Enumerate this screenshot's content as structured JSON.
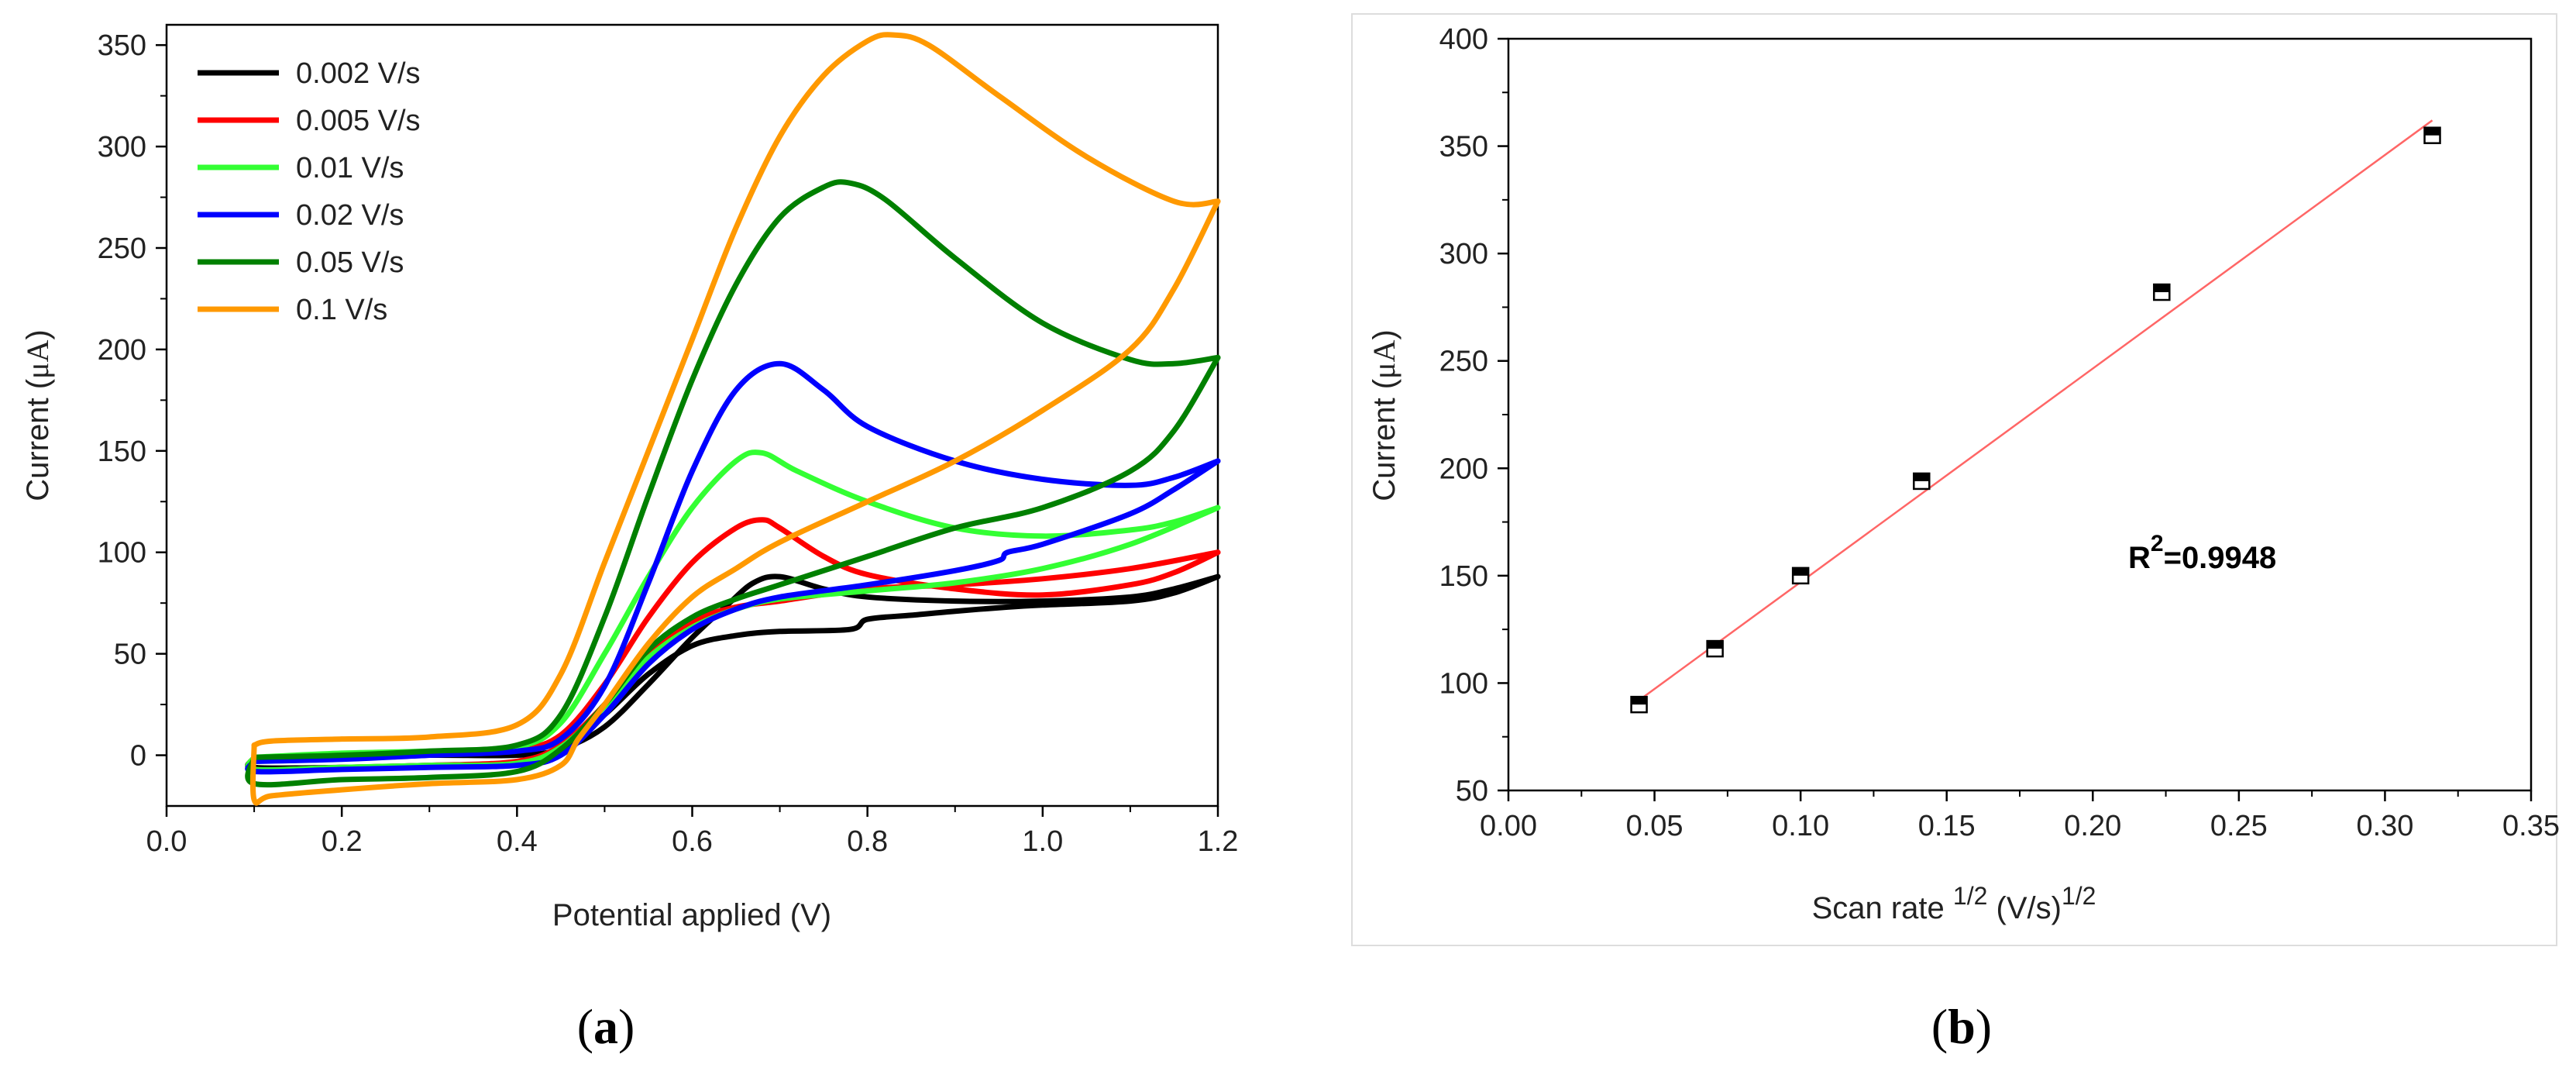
{
  "chart_data": [
    {
      "type": "line",
      "panel": "a",
      "panel_open": "(",
      "panel_letter": "a",
      "panel_close": ")",
      "xlabel": "Potential applied (V)",
      "ylabel_prefix": "Current (",
      "ylabel_unit": "μA",
      "ylabel_suffix": ")",
      "xlim": [
        0.0,
        1.2
      ],
      "ylim": [
        -25,
        360
      ],
      "xticks": [
        0.0,
        0.2,
        0.4,
        0.6,
        0.8,
        1.0,
        1.2
      ],
      "xtick_labels": [
        "0.0",
        "0.2",
        "0.4",
        "0.6",
        "0.8",
        "1.0",
        "1.2"
      ],
      "yticks": [
        0,
        50,
        100,
        150,
        200,
        250,
        300,
        350
      ],
      "ytick_labels": [
        "0",
        "50",
        "100",
        "150",
        "200",
        "250",
        "300",
        "350"
      ],
      "legend_position": "top-left",
      "series": [
        {
          "name": "0.002 V/s",
          "color": "#000000",
          "forward": [
            [
              0.1,
              -2
            ],
            [
              0.2,
              -1
            ],
            [
              0.3,
              0
            ],
            [
              0.4,
              0
            ],
            [
              0.45,
              3
            ],
            [
              0.5,
              14
            ],
            [
              0.55,
              35
            ],
            [
              0.6,
              58
            ],
            [
              0.64,
              74
            ],
            [
              0.67,
              85
            ],
            [
              0.7,
              88
            ],
            [
              0.75,
              82
            ],
            [
              0.8,
              78
            ],
            [
              0.9,
              76
            ],
            [
              1.0,
              76
            ],
            [
              1.1,
              78
            ],
            [
              1.15,
              82
            ],
            [
              1.2,
              88
            ]
          ],
          "reverse": [
            [
              1.2,
              88
            ],
            [
              1.15,
              80
            ],
            [
              1.1,
              76
            ],
            [
              1.0,
              74
            ],
            [
              0.96,
              73
            ],
            [
              0.9,
              71
            ],
            [
              0.85,
              69
            ],
            [
              0.8,
              67
            ],
            [
              0.78,
              62
            ],
            [
              0.7,
              61
            ],
            [
              0.65,
              59
            ],
            [
              0.6,
              54
            ],
            [
              0.55,
              40
            ],
            [
              0.5,
              20
            ],
            [
              0.45,
              3
            ],
            [
              0.4,
              -4
            ],
            [
              0.3,
              -5
            ],
            [
              0.2,
              -6
            ],
            [
              0.1,
              -6
            ],
            [
              0.1,
              -2
            ]
          ]
        },
        {
          "name": "0.005 V/s",
          "color": "#ff0000",
          "forward": [
            [
              0.1,
              -1
            ],
            [
              0.2,
              0
            ],
            [
              0.3,
              1
            ],
            [
              0.4,
              3
            ],
            [
              0.45,
              10
            ],
            [
              0.5,
              35
            ],
            [
              0.55,
              68
            ],
            [
              0.6,
              95
            ],
            [
              0.65,
              112
            ],
            [
              0.68,
              116
            ],
            [
              0.7,
              112
            ],
            [
              0.75,
              98
            ],
            [
              0.8,
              89
            ],
            [
              0.9,
              82
            ],
            [
              1.0,
              79
            ],
            [
              1.1,
              84
            ],
            [
              1.15,
              90
            ],
            [
              1.2,
              100
            ]
          ],
          "reverse": [
            [
              1.2,
              100
            ],
            [
              1.1,
              92
            ],
            [
              1.0,
              87
            ],
            [
              0.9,
              84
            ],
            [
              0.8,
              82
            ],
            [
              0.7,
              76
            ],
            [
              0.65,
              73
            ],
            [
              0.6,
              66
            ],
            [
              0.55,
              50
            ],
            [
              0.5,
              25
            ],
            [
              0.45,
              5
            ],
            [
              0.4,
              -3
            ],
            [
              0.3,
              -5
            ],
            [
              0.2,
              -6
            ],
            [
              0.1,
              -7
            ],
            [
              0.1,
              -1
            ]
          ]
        },
        {
          "name": "0.01 V/s",
          "color": "#33ff33",
          "forward": [
            [
              0.1,
              -1
            ],
            [
              0.2,
              1
            ],
            [
              0.3,
              2
            ],
            [
              0.4,
              4
            ],
            [
              0.45,
              16
            ],
            [
              0.5,
              50
            ],
            [
              0.55,
              88
            ],
            [
              0.6,
              122
            ],
            [
              0.65,
              145
            ],
            [
              0.68,
              149
            ],
            [
              0.72,
              140
            ],
            [
              0.8,
              125
            ],
            [
              0.9,
              112
            ],
            [
              1.0,
              108
            ],
            [
              1.1,
              111
            ],
            [
              1.15,
              115
            ],
            [
              1.2,
              122
            ]
          ],
          "reverse": [
            [
              1.2,
              122
            ],
            [
              1.1,
              104
            ],
            [
              1.0,
              92
            ],
            [
              0.9,
              85
            ],
            [
              0.8,
              81
            ],
            [
              0.7,
              77
            ],
            [
              0.65,
              72
            ],
            [
              0.6,
              63
            ],
            [
              0.55,
              48
            ],
            [
              0.5,
              24
            ],
            [
              0.45,
              4
            ],
            [
              0.4,
              -4
            ],
            [
              0.3,
              -5
            ],
            [
              0.2,
              -6
            ],
            [
              0.1,
              -7
            ],
            [
              0.1,
              -1
            ]
          ]
        },
        {
          "name": "0.02 V/s",
          "color": "#0000ff",
          "forward": [
            [
              0.1,
              -3
            ],
            [
              0.2,
              -2
            ],
            [
              0.3,
              0
            ],
            [
              0.4,
              2
            ],
            [
              0.45,
              8
            ],
            [
              0.5,
              34
            ],
            [
              0.55,
              85
            ],
            [
              0.6,
              140
            ],
            [
              0.65,
              180
            ],
            [
              0.7,
              193
            ],
            [
              0.75,
              180
            ],
            [
              0.8,
              162
            ],
            [
              0.9,
              145
            ],
            [
              1.0,
              136
            ],
            [
              1.1,
              133
            ],
            [
              1.15,
              137
            ],
            [
              1.2,
              145
            ]
          ],
          "reverse": [
            [
              1.2,
              145
            ],
            [
              1.15,
              131
            ],
            [
              1.1,
              119
            ],
            [
              1.0,
              104
            ],
            [
              0.96,
              100
            ],
            [
              0.95,
              96
            ],
            [
              0.9,
              91
            ],
            [
              0.8,
              84
            ],
            [
              0.7,
              78
            ],
            [
              0.65,
              72
            ],
            [
              0.6,
              62
            ],
            [
              0.55,
              45
            ],
            [
              0.5,
              20
            ],
            [
              0.45,
              0
            ],
            [
              0.4,
              -5
            ],
            [
              0.3,
              -6
            ],
            [
              0.2,
              -7
            ],
            [
              0.1,
              -8
            ],
            [
              0.1,
              -3
            ]
          ]
        },
        {
          "name": "0.05 V/s",
          "color": "#008000",
          "forward": [
            [
              0.1,
              -1
            ],
            [
              0.2,
              0
            ],
            [
              0.3,
              2
            ],
            [
              0.4,
              5
            ],
            [
              0.45,
              20
            ],
            [
              0.5,
              68
            ],
            [
              0.55,
              128
            ],
            [
              0.6,
              185
            ],
            [
              0.65,
              232
            ],
            [
              0.7,
              265
            ],
            [
              0.75,
              280
            ],
            [
              0.78,
              282
            ],
            [
              0.82,
              274
            ],
            [
              0.9,
              245
            ],
            [
              1.0,
              213
            ],
            [
              1.1,
              195
            ],
            [
              1.15,
              193
            ],
            [
              1.2,
              196
            ]
          ],
          "reverse": [
            [
              1.2,
              196
            ],
            [
              1.15,
              160
            ],
            [
              1.1,
              140
            ],
            [
              1.0,
              122
            ],
            [
              0.9,
              112
            ],
            [
              0.8,
              98
            ],
            [
              0.7,
              84
            ],
            [
              0.65,
              77
            ],
            [
              0.6,
              68
            ],
            [
              0.55,
              52
            ],
            [
              0.5,
              25
            ],
            [
              0.45,
              3
            ],
            [
              0.4,
              -8
            ],
            [
              0.3,
              -11
            ],
            [
              0.2,
              -12
            ],
            [
              0.1,
              -14
            ],
            [
              0.1,
              -1
            ]
          ]
        },
        {
          "name": "0.1 V/s",
          "color": "#ff9900",
          "forward": [
            [
              0.1,
              5
            ],
            [
              0.12,
              7
            ],
            [
              0.2,
              8
            ],
            [
              0.3,
              9
            ],
            [
              0.4,
              15
            ],
            [
              0.45,
              40
            ],
            [
              0.5,
              95
            ],
            [
              0.55,
              150
            ],
            [
              0.6,
              205
            ],
            [
              0.65,
              260
            ],
            [
              0.7,
              305
            ],
            [
              0.75,
              335
            ],
            [
              0.8,
              352
            ],
            [
              0.83,
              355
            ],
            [
              0.87,
              350
            ],
            [
              0.95,
              325
            ],
            [
              1.05,
              295
            ],
            [
              1.15,
              273
            ],
            [
              1.2,
              273
            ]
          ],
          "reverse": [
            [
              1.2,
              273
            ],
            [
              1.15,
              230
            ],
            [
              1.1,
              200
            ],
            [
              1.0,
              170
            ],
            [
              0.9,
              145
            ],
            [
              0.8,
              125
            ],
            [
              0.7,
              105
            ],
            [
              0.65,
              92
            ],
            [
              0.6,
              78
            ],
            [
              0.55,
              55
            ],
            [
              0.5,
              25
            ],
            [
              0.47,
              8
            ],
            [
              0.45,
              -5
            ],
            [
              0.4,
              -12
            ],
            [
              0.3,
              -14
            ],
            [
              0.2,
              -17
            ],
            [
              0.12,
              -20
            ],
            [
              0.1,
              -22
            ],
            [
              0.1,
              5
            ]
          ]
        }
      ]
    },
    {
      "type": "scatter",
      "panel": "b",
      "panel_open": "(",
      "panel_letter": "b",
      "panel_close": ")",
      "xlabel_main": "Scan rate ",
      "xlabel_sup1": "1/2",
      "xlabel_unit": " (V/s)",
      "xlabel_sup2": "1/2",
      "ylabel_prefix": "Current (",
      "ylabel_unit": "μA",
      "ylabel_suffix": ")",
      "xlim": [
        0.0,
        0.35
      ],
      "ylim": [
        50,
        400
      ],
      "xticks": [
        0.0,
        0.05,
        0.1,
        0.15,
        0.2,
        0.25,
        0.3,
        0.35
      ],
      "xtick_labels": [
        "0.00",
        "0.05",
        "0.10",
        "0.15",
        "0.20",
        "0.25",
        "0.30",
        "0.35"
      ],
      "yticks": [
        50,
        100,
        150,
        200,
        250,
        300,
        350,
        400
      ],
      "ytick_labels": [
        "50",
        "100",
        "150",
        "200",
        "250",
        "300",
        "350",
        "400"
      ],
      "points": [
        {
          "x": 0.0447,
          "y": 90
        },
        {
          "x": 0.0707,
          "y": 116
        },
        {
          "x": 0.1,
          "y": 150
        },
        {
          "x": 0.1414,
          "y": 194
        },
        {
          "x": 0.2236,
          "y": 282
        },
        {
          "x": 0.3162,
          "y": 355
        }
      ],
      "fit_line": {
        "x": [
          0.0447,
          0.3162
        ],
        "y": [
          92,
          362
        ],
        "color": "#ff6666"
      },
      "annotation_main": "R",
      "annotation_sup": "2",
      "annotation_value": "=0.9948"
    }
  ]
}
